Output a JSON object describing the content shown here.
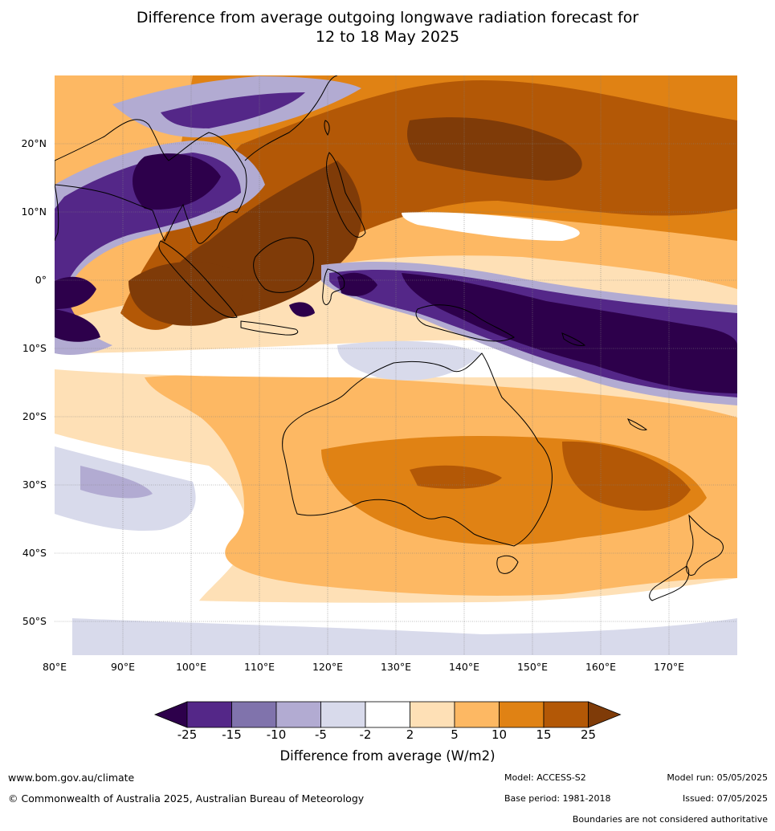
{
  "title": {
    "line1": "Difference from average outgoing longwave radiation forecast for",
    "line2": "12 to 18 May 2025"
  },
  "map": {
    "lon_labels": [
      "80°E",
      "90°E",
      "100°E",
      "110°E",
      "120°E",
      "130°E",
      "140°E",
      "150°E",
      "160°E",
      "170°E"
    ],
    "lat_labels": [
      "20°N",
      "10°N",
      "0°",
      "10°S",
      "20°S",
      "30°S",
      "40°S",
      "50°S"
    ],
    "extent": {
      "lon_min": 80,
      "lon_max": 180,
      "lat_min": -55,
      "lat_max": 30
    }
  },
  "colorbar": {
    "title": "Difference from average (W/m2)",
    "tick_labels": [
      "-25",
      "-15",
      "-10",
      "-5",
      "-2",
      "2",
      "5",
      "10",
      "15",
      "25"
    ],
    "colors": [
      "#2d004b",
      "#542788",
      "#8073ac",
      "#b2abd2",
      "#d8daeb",
      "#ffffff",
      "#fee0b6",
      "#fdb863",
      "#e08214",
      "#b35806",
      "#7f3b08"
    ]
  },
  "footer": {
    "website": "www.bom.gov.au/climate",
    "copyright": "© Commonwealth of Australia 2025, Australian Bureau of Meteorology",
    "model": "Model: ACCESS-S2",
    "base_period": "Base period: 1981-2018",
    "model_run": "Model run: 05/05/2025",
    "issued": "Issued: 07/05/2025",
    "disclaimer": "Boundaries are not considered authoritative"
  }
}
